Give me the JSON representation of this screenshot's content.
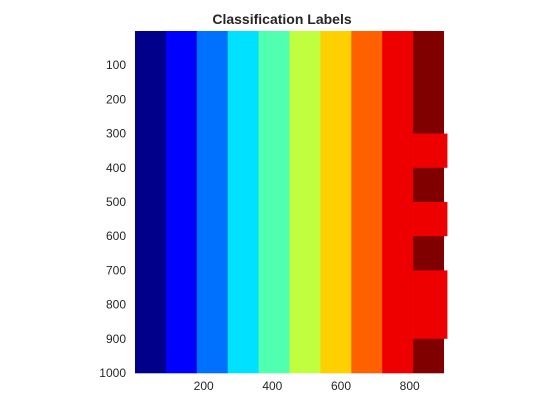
{
  "chart_data": {
    "type": "heatmap",
    "title": "Classification Labels",
    "xlabel": "",
    "ylabel": "",
    "xlim": [
      0,
      900
    ],
    "ylim": [
      0,
      1000
    ],
    "y_direction": "reversed",
    "xticks": [
      200,
      400,
      600,
      800
    ],
    "yticks": [
      100,
      200,
      300,
      400,
      500,
      600,
      700,
      800,
      900,
      1000
    ],
    "colormap": "jet",
    "grid": false,
    "legend": "none",
    "class_colors": [
      "#00008b",
      "#0000ff",
      "#0070ff",
      "#00e0ff",
      "#50ffb0",
      "#c0ff40",
      "#ffd000",
      "#ff6000",
      "#ee0000",
      "#800000"
    ],
    "column_bands": [
      {
        "x0": 0,
        "x1": 90,
        "class": 1
      },
      {
        "x0": 90,
        "x1": 180,
        "class": 2
      },
      {
        "x0": 180,
        "x1": 270,
        "class": 3
      },
      {
        "x0": 270,
        "x1": 360,
        "class": 4
      },
      {
        "x0": 360,
        "x1": 450,
        "class": 5
      },
      {
        "x0": 450,
        "x1": 540,
        "class": 6
      },
      {
        "x0": 540,
        "x1": 630,
        "class": 7
      },
      {
        "x0": 630,
        "x1": 720,
        "class": 8
      },
      {
        "x0": 720,
        "x1": 810,
        "class": 9
      }
    ],
    "last_column": {
      "x0": 810,
      "x1": 900,
      "segments": [
        {
          "y0": 0,
          "y1": 300,
          "class": 10
        },
        {
          "y0": 300,
          "y1": 400,
          "class": 9
        },
        {
          "y0": 400,
          "y1": 500,
          "class": 10
        },
        {
          "y0": 500,
          "y1": 600,
          "class": 9
        },
        {
          "y0": 600,
          "y1": 700,
          "class": 10
        },
        {
          "y0": 700,
          "y1": 900,
          "class": 9
        },
        {
          "y0": 900,
          "y1": 1000,
          "class": 10
        }
      ]
    },
    "notch": {
      "x0": 900,
      "x1": 910
    }
  }
}
